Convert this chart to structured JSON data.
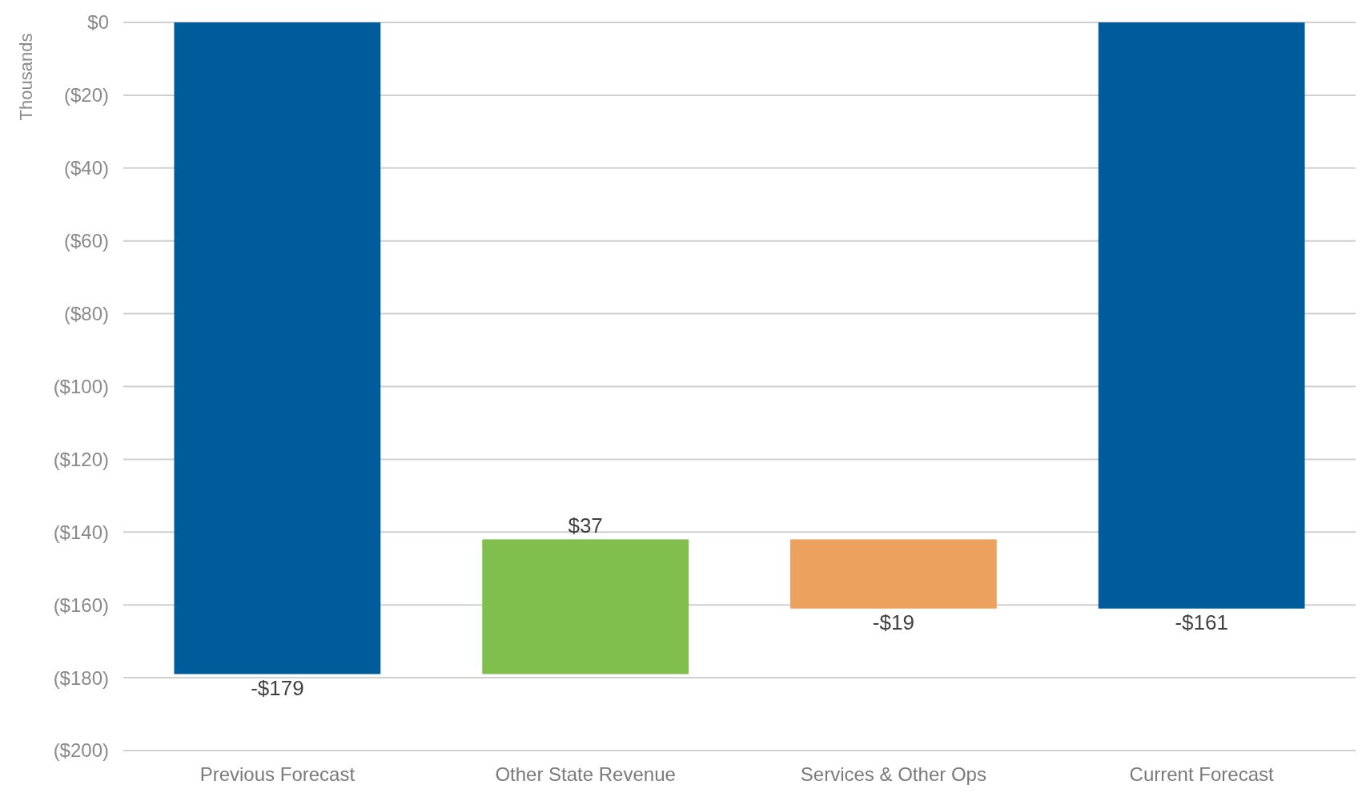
{
  "chart_data": {
    "type": "bar",
    "ylabel": "Thousands",
    "categories": [
      "Previous Forecast",
      "Other State Revenue",
      "Services & Other Ops",
      "Current Forecast"
    ],
    "values": [
      -179,
      37,
      -19,
      -161
    ],
    "base": [
      0,
      -179,
      -142,
      0
    ],
    "colors": [
      "#005b9a",
      "#80bf4e",
      "#eca25e",
      "#005b9a"
    ],
    "value_labels": [
      "-$179",
      "$37",
      "-$19",
      "-$161"
    ],
    "ylim": [
      -200,
      0
    ],
    "yticks": [
      {
        "value": 0,
        "label": "$0"
      },
      {
        "value": -20,
        "label": "($20)"
      },
      {
        "value": -40,
        "label": "($40)"
      },
      {
        "value": -60,
        "label": "($60)"
      },
      {
        "value": -80,
        "label": "($80)"
      },
      {
        "value": -100,
        "label": "($100)"
      },
      {
        "value": -120,
        "label": "($120)"
      },
      {
        "value": -140,
        "label": "($140)"
      },
      {
        "value": -160,
        "label": "($160)"
      },
      {
        "value": -180,
        "label": "($180)"
      },
      {
        "value": -200,
        "label": "($200)"
      }
    ],
    "grid": "y"
  }
}
